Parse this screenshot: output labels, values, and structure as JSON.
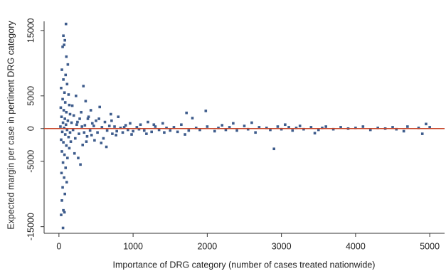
{
  "chart_data": {
    "type": "scatter",
    "xlabel": "Importance of DRG category (number of cases treated nationwide)",
    "ylabel": "Expected margin per case in pertinent DRG category",
    "color": "#3e5c8c",
    "hline": {
      "value": 0,
      "color": "#c8452a"
    },
    "xlim": [
      -200,
      5200
    ],
    "xticks": [
      0,
      1000,
      2000,
      3000,
      4000,
      5000
    ],
    "ylim": [
      -15800,
      16400
    ],
    "yticks": [
      -15000,
      -5000,
      0,
      5000,
      15000
    ],
    "x": [
      95,
      60,
      80,
      50,
      70,
      100,
      120,
      40,
      90,
      60,
      110,
      30,
      75,
      130,
      50,
      85,
      140,
      25,
      65,
      100,
      150,
      35,
      80,
      120,
      55,
      95,
      20,
      70,
      110,
      45,
      85,
      130,
      30,
      60,
      100,
      140,
      40,
      75,
      115,
      55,
      90,
      35,
      70,
      105,
      50,
      80,
      40,
      60,
      30,
      75,
      55,
      180,
      200,
      220,
      250,
      270,
      300,
      320,
      350,
      380,
      400,
      420,
      450,
      480,
      500,
      210,
      260,
      330,
      360,
      230,
      290,
      310,
      340,
      390,
      440,
      470,
      190,
      240,
      280,
      370,
      430,
      160,
      170,
      150,
      520,
      550,
      580,
      600,
      620,
      650,
      680,
      700,
      720,
      750,
      780,
      800,
      830,
      860,
      900,
      930,
      960,
      1000,
      1050,
      1100,
      1150,
      1200,
      1250,
      1300,
      1350,
      1400,
      1450,
      1500,
      540,
      570,
      640,
      710,
      770,
      880,
      980,
      1080,
      1180,
      1280,
      1420,
      1550,
      1600,
      1650,
      1720,
      1750,
      1800,
      1850,
      1900,
      1980,
      2000,
      2100,
      2150,
      2200,
      2250,
      2300,
      2400,
      2500,
      2550,
      2600,
      2650,
      2700,
      2800,
      2850,
      2900,
      2950,
      3000,
      3100,
      3150,
      3200,
      3250,
      3300,
      3400,
      3500,
      3550,
      3600,
      3700,
      3800,
      3900,
      4000,
      4100,
      4200,
      4300,
      4400,
      4500,
      4550,
      4650,
      4700,
      4850,
      4900,
      4950,
      5000,
      1700,
      2350,
      3050,
      3450
    ],
    "y": [
      16000,
      14200,
      13500,
      12500,
      12800,
      11000,
      9800,
      9000,
      8200,
      7500,
      6800,
      6200,
      5500,
      5200,
      4500,
      4000,
      3600,
      3200,
      2800,
      2500,
      2200,
      1800,
      1500,
      1200,
      900,
      600,
      300,
      100,
      -200,
      -500,
      -900,
      -1300,
      -1700,
      -2100,
      -2600,
      -3000,
      -3500,
      -4000,
      -4500,
      -5200,
      -6000,
      -6800,
      -7500,
      -8200,
      -9000,
      -10000,
      -11000,
      -12500,
      -13200,
      -12800,
      -15200,
      3500,
      2000,
      -1500,
      1000,
      -800,
      2500,
      -2500,
      500,
      -1200,
      1800,
      -300,
      800,
      -1800,
      1200,
      -3800,
      -4500,
      6500,
      4200,
      5000,
      -5500,
      300,
      -600,
      1500,
      -1000,
      400,
      -200,
      600,
      1500,
      -2000,
      2800,
      -2000,
      900,
      -600,
      -600,
      3300,
      200,
      -1500,
      1000,
      -300,
      400,
      2200,
      -800,
      300,
      -400,
      1800,
      100,
      -600,
      500,
      -200,
      800,
      -400,
      200,
      600,
      -300,
      1000,
      -500,
      300,
      -200,
      800,
      100,
      -300,
      1500,
      -2200,
      -2800,
      1200,
      -1000,
      200,
      -900,
      -100,
      -800,
      600,
      -600,
      200,
      -500,
      600,
      2400,
      -300,
      1600,
      100,
      -200,
      2700,
      300,
      -400,
      100,
      500,
      -200,
      200,
      -300,
      400,
      -100,
      900,
      -600,
      200,
      100,
      -200,
      -3100,
      300,
      -100,
      200,
      -300,
      100,
      400,
      -100,
      200,
      -200,
      100,
      300,
      -100,
      200,
      0,
      100,
      300,
      -200,
      100,
      0,
      200,
      -100,
      -400,
      300,
      100,
      -800,
      700,
      200,
      -900,
      800,
      600,
      -700
    ]
  }
}
